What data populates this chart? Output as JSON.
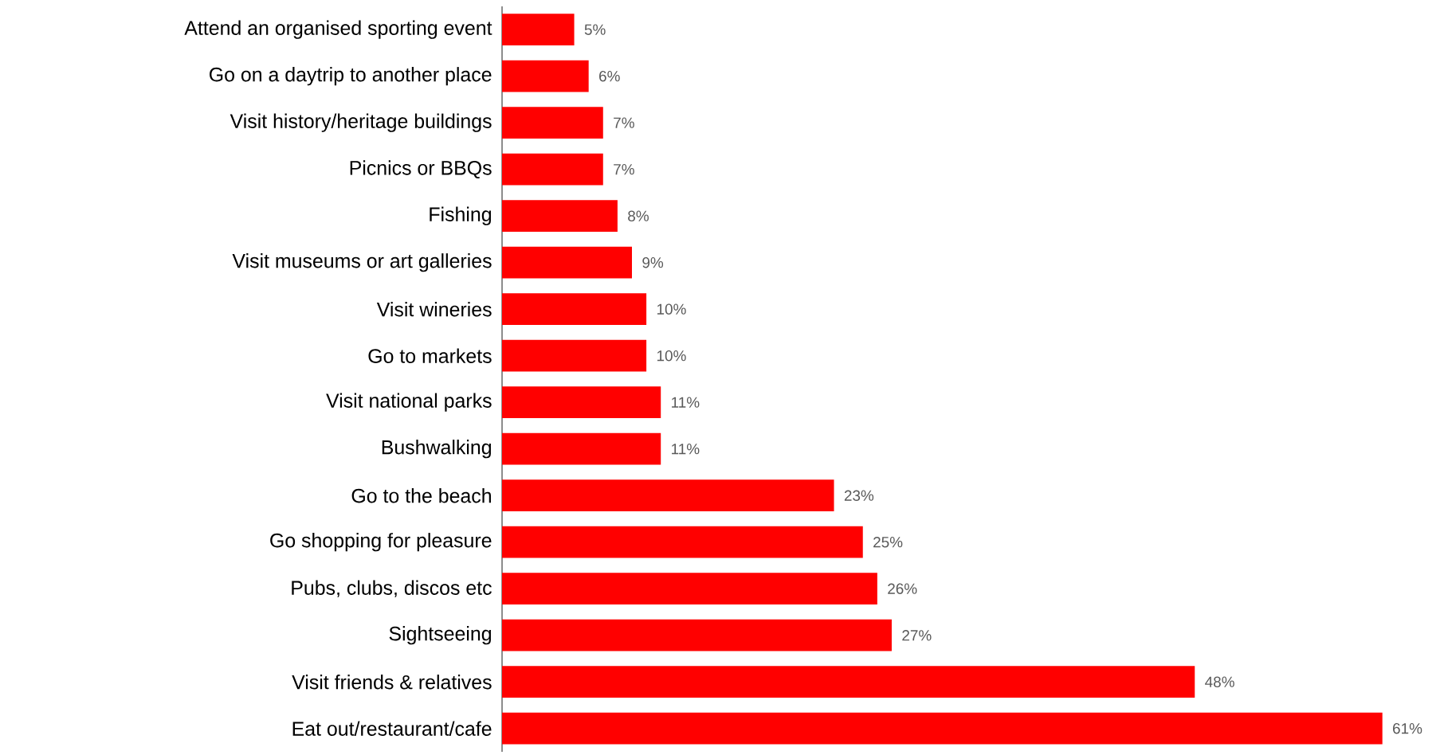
{
  "chart_data": {
    "type": "bar",
    "orientation": "horizontal",
    "categories": [
      "Attend an organised sporting event",
      "Go on a daytrip to another place",
      "Visit history/heritage buildings",
      "Picnics or BBQs",
      "Fishing",
      "Visit museums or art galleries",
      "Visit wineries",
      "Go to markets",
      "Visit national parks",
      "Bushwalking",
      "Go to the beach",
      "Go shopping for pleasure",
      "Pubs, clubs, discos etc",
      "Sightseeing",
      "Visit friends & relatives",
      "Eat out/restaurant/cafe"
    ],
    "values": [
      5,
      6,
      7,
      7,
      8,
      9,
      10,
      10,
      11,
      11,
      23,
      25,
      26,
      27,
      48,
      61
    ],
    "value_labels": [
      "5%",
      "6%",
      "7%",
      "7%",
      "8%",
      "9%",
      "10%",
      "10%",
      "11%",
      "11%",
      "23%",
      "25%",
      "26%",
      "27%",
      "48%",
      "61%"
    ],
    "color": "#ff0000"
  }
}
